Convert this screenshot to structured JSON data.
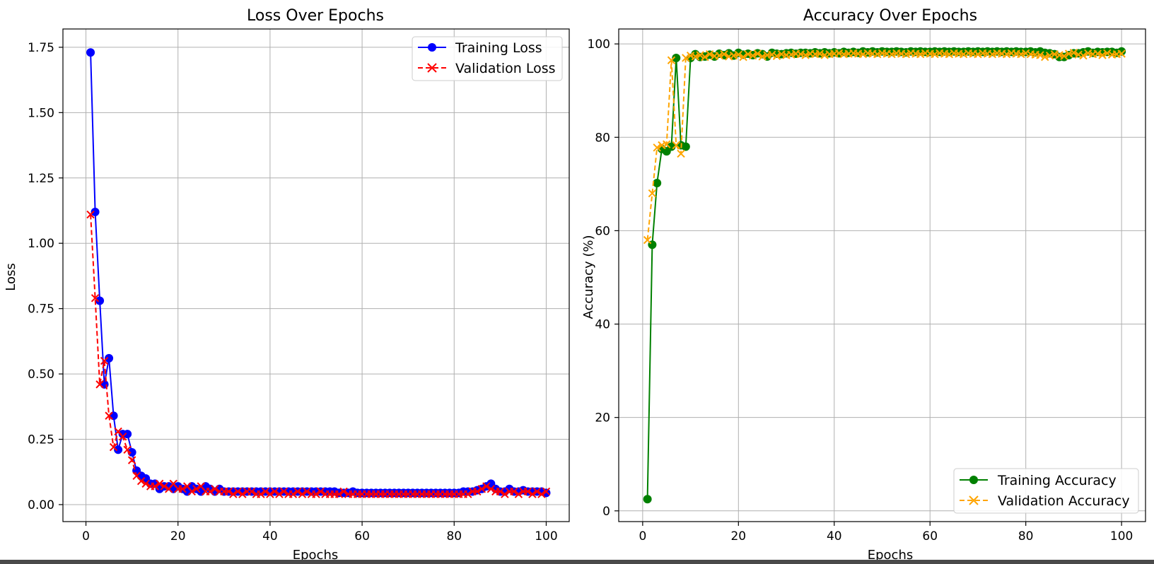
{
  "chart_data": [
    {
      "type": "line",
      "title": "Loss Over Epochs",
      "xlabel": "Epochs",
      "ylabel": "Loss",
      "xlim": [
        -5,
        105
      ],
      "ylim": [
        -0.065,
        1.82
      ],
      "xticks": [
        0,
        20,
        40,
        60,
        80,
        100
      ],
      "yticks": [
        0.0,
        0.25,
        0.5,
        0.75,
        1.0,
        1.25,
        1.5,
        1.75
      ],
      "yticklabels": [
        "0.00",
        "0.25",
        "0.50",
        "0.75",
        "1.00",
        "1.25",
        "1.50",
        "1.75"
      ],
      "grid": true,
      "legend_position": "upper right",
      "x": [
        1,
        2,
        3,
        4,
        5,
        6,
        7,
        8,
        9,
        10,
        11,
        12,
        13,
        14,
        15,
        16,
        17,
        18,
        19,
        20,
        21,
        22,
        23,
        24,
        25,
        26,
        27,
        28,
        29,
        30,
        31,
        32,
        33,
        34,
        35,
        36,
        37,
        38,
        39,
        40,
        41,
        42,
        43,
        44,
        45,
        46,
        47,
        48,
        49,
        50,
        51,
        52,
        53,
        54,
        55,
        56,
        57,
        58,
        59,
        60,
        61,
        62,
        63,
        64,
        65,
        66,
        67,
        68,
        69,
        70,
        71,
        72,
        73,
        74,
        75,
        76,
        77,
        78,
        79,
        80,
        81,
        82,
        83,
        84,
        85,
        86,
        87,
        88,
        89,
        90,
        91,
        92,
        93,
        94,
        95,
        96,
        97,
        98,
        99,
        100
      ],
      "series": [
        {
          "name": "Training Loss",
          "color": "#0000ff",
          "linestyle": "solid",
          "marker": "circle",
          "values": [
            1.73,
            1.12,
            0.78,
            0.46,
            0.56,
            0.34,
            0.21,
            0.27,
            0.27,
            0.2,
            0.13,
            0.11,
            0.1,
            0.08,
            0.08,
            0.06,
            0.07,
            0.07,
            0.06,
            0.07,
            0.06,
            0.05,
            0.07,
            0.06,
            0.05,
            0.07,
            0.06,
            0.05,
            0.06,
            0.05,
            0.05,
            0.05,
            0.05,
            0.05,
            0.05,
            0.05,
            0.05,
            0.05,
            0.05,
            0.05,
            0.05,
            0.05,
            0.05,
            0.05,
            0.05,
            0.05,
            0.05,
            0.05,
            0.05,
            0.05,
            0.05,
            0.05,
            0.05,
            0.05,
            0.045,
            0.045,
            0.045,
            0.05,
            0.045,
            0.045,
            0.045,
            0.045,
            0.045,
            0.045,
            0.045,
            0.045,
            0.045,
            0.045,
            0.045,
            0.045,
            0.045,
            0.045,
            0.045,
            0.045,
            0.045,
            0.045,
            0.045,
            0.045,
            0.045,
            0.045,
            0.045,
            0.05,
            0.05,
            0.05,
            0.055,
            0.06,
            0.07,
            0.08,
            0.06,
            0.05,
            0.05,
            0.06,
            0.05,
            0.05,
            0.055,
            0.05,
            0.05,
            0.05,
            0.05,
            0.045
          ]
        },
        {
          "name": "Validation Loss",
          "color": "#ff0000",
          "linestyle": "dashed",
          "marker": "x",
          "values": [
            1.11,
            0.79,
            0.46,
            0.55,
            0.34,
            0.22,
            0.28,
            0.26,
            0.21,
            0.17,
            0.11,
            0.09,
            0.08,
            0.07,
            0.07,
            0.08,
            0.07,
            0.06,
            0.08,
            0.06,
            0.06,
            0.07,
            0.05,
            0.06,
            0.07,
            0.05,
            0.05,
            0.06,
            0.05,
            0.05,
            0.05,
            0.04,
            0.05,
            0.04,
            0.05,
            0.05,
            0.04,
            0.04,
            0.05,
            0.04,
            0.05,
            0.04,
            0.05,
            0.04,
            0.04,
            0.05,
            0.04,
            0.05,
            0.04,
            0.04,
            0.05,
            0.04,
            0.04,
            0.04,
            0.04,
            0.05,
            0.04,
            0.04,
            0.04,
            0.04,
            0.04,
            0.04,
            0.04,
            0.04,
            0.04,
            0.04,
            0.04,
            0.04,
            0.04,
            0.04,
            0.04,
            0.04,
            0.04,
            0.04,
            0.04,
            0.04,
            0.04,
            0.04,
            0.04,
            0.04,
            0.04,
            0.04,
            0.04,
            0.05,
            0.05,
            0.06,
            0.07,
            0.06,
            0.05,
            0.05,
            0.04,
            0.05,
            0.05,
            0.04,
            0.05,
            0.05,
            0.04,
            0.05,
            0.04,
            0.05
          ]
        }
      ]
    },
    {
      "type": "line",
      "title": "Accuracy Over Epochs",
      "xlabel": "Epochs",
      "ylabel": "Accuracy (%)",
      "xlim": [
        -5,
        105
      ],
      "ylim": [
        -2.3,
        103.2
      ],
      "xticks": [
        0,
        20,
        40,
        60,
        80,
        100
      ],
      "yticks": [
        0,
        20,
        40,
        60,
        80,
        100
      ],
      "yticklabels": [
        "0",
        "20",
        "40",
        "60",
        "80",
        "100"
      ],
      "grid": true,
      "legend_position": "lower right",
      "x": [
        1,
        2,
        3,
        4,
        5,
        6,
        7,
        8,
        9,
        10,
        11,
        12,
        13,
        14,
        15,
        16,
        17,
        18,
        19,
        20,
        21,
        22,
        23,
        24,
        25,
        26,
        27,
        28,
        29,
        30,
        31,
        32,
        33,
        34,
        35,
        36,
        37,
        38,
        39,
        40,
        41,
        42,
        43,
        44,
        45,
        46,
        47,
        48,
        49,
        50,
        51,
        52,
        53,
        54,
        55,
        56,
        57,
        58,
        59,
        60,
        61,
        62,
        63,
        64,
        65,
        66,
        67,
        68,
        69,
        70,
        71,
        72,
        73,
        74,
        75,
        76,
        77,
        78,
        79,
        80,
        81,
        82,
        83,
        84,
        85,
        86,
        87,
        88,
        89,
        90,
        91,
        92,
        93,
        94,
        95,
        96,
        97,
        98,
        99,
        100
      ],
      "series": [
        {
          "name": "Training Accuracy",
          "color": "#008000",
          "linestyle": "solid",
          "marker": "circle",
          "values": [
            2.5,
            57,
            70.2,
            77.5,
            77,
            78,
            97,
            78.3,
            78,
            97,
            97.8,
            97.2,
            97.3,
            97.7,
            97.3,
            97.9,
            97.6,
            98,
            97.5,
            98.1,
            97.7,
            97.9,
            97.6,
            98,
            97.8,
            97.3,
            98.1,
            97.9,
            97.8,
            98,
            98.1,
            97.9,
            98.1,
            98.1,
            98,
            98.2,
            98,
            98.2,
            98,
            98.2,
            98,
            98.3,
            98.1,
            98.3,
            98.1,
            98.4,
            98.2,
            98.4,
            98.2,
            98.4,
            98.3,
            98.3,
            98.4,
            98.3,
            98.2,
            98.4,
            98.3,
            98.4,
            98.3,
            98.3,
            98.4,
            98.3,
            98.4,
            98.3,
            98.4,
            98.3,
            98.3,
            98.4,
            98.3,
            98.4,
            98.3,
            98.4,
            98.3,
            98.4,
            98.3,
            98.4,
            98.3,
            98.4,
            98.3,
            98.3,
            98.4,
            98.2,
            98.4,
            98.1,
            98,
            97.8,
            97.2,
            97.2,
            97.6,
            98,
            98,
            98.2,
            98.4,
            98.1,
            98.3,
            98.2,
            98.3,
            98.3,
            98.1,
            98.4
          ]
        },
        {
          "name": "Validation Accuracy",
          "color": "#ffa500",
          "linestyle": "dashed",
          "marker": "x",
          "values": [
            58,
            68,
            77.8,
            78.3,
            78.5,
            96.5,
            78.3,
            76.5,
            97,
            97.5,
            97.3,
            97.6,
            97.2,
            97.8,
            97.4,
            97.5,
            97.8,
            97.3,
            97.5,
            97.7,
            97.2,
            97.8,
            97.5,
            97.9,
            97.3,
            97.6,
            97.7,
            97.4,
            97.8,
            97.6,
            97.7,
            97.9,
            97.8,
            97.6,
            97.9,
            97.8,
            97.9,
            97.6,
            97.8,
            97.9,
            98,
            97.8,
            97.9,
            98,
            97.9,
            97.8,
            98,
            97.9,
            97.8,
            98,
            97.9,
            97.8,
            98,
            97.9,
            97.8,
            98,
            97.9,
            97.8,
            98,
            97.9,
            97.8,
            98,
            97.9,
            97.8,
            98,
            97.9,
            97.8,
            98,
            97.9,
            97.8,
            98,
            97.9,
            97.8,
            98,
            97.9,
            97.8,
            98,
            97.9,
            97.8,
            98,
            97.8,
            97.7,
            97.6,
            97.2,
            97.5,
            97.8,
            97.6,
            97.4,
            97.9,
            98.1,
            97.7,
            97.5,
            98,
            97.8,
            97.9,
            97.6,
            98,
            97.7,
            97.8,
            97.9
          ]
        }
      ]
    }
  ]
}
